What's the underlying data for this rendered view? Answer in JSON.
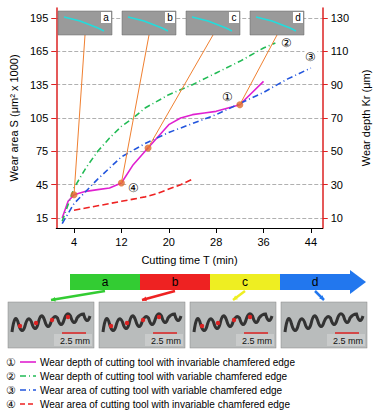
{
  "chart_data": {
    "type": "line",
    "x_label": "Cutting time T (min)",
    "y_label": "Wear area S (μm² x 1000)",
    "y2_label": "Wear depth Kr (μm)",
    "xlim": [
      1,
      46
    ],
    "xticks": [
      4,
      12,
      20,
      28,
      36,
      44
    ],
    "ylim": [
      6,
      204
    ],
    "yticks": [
      15,
      45,
      75,
      105,
      135,
      165,
      195
    ],
    "y2lim": [
      4,
      136
    ],
    "y2ticks": [
      10,
      30,
      50,
      70,
      90,
      110,
      130
    ],
    "grid": true,
    "series": [
      {
        "tag": "①",
        "name": "Wear depth of cutting tool with invariable chamfered edge",
        "color": "#e020d0",
        "line_style": "solid",
        "axis": "y2",
        "x": [
          2,
          3,
          4,
          6,
          8,
          10,
          12,
          14,
          16,
          18,
          20,
          22,
          24,
          26,
          28,
          30,
          32,
          34,
          36
        ],
        "values": [
          10,
          20,
          24,
          26,
          27,
          28,
          31,
          42,
          50,
          58,
          66,
          70,
          72,
          73,
          74,
          76,
          78,
          85,
          92
        ]
      },
      {
        "tag": "②",
        "name": "Wear depth of cutting tool with variable chamfered edge",
        "color": "#22bb55",
        "line_style": "dashdot",
        "axis": "y2",
        "x": [
          2,
          4,
          6,
          8,
          10,
          12,
          14,
          16,
          18,
          20,
          24,
          28,
          32,
          36,
          38
        ],
        "values": [
          8,
          28,
          40,
          50,
          58,
          65,
          70,
          76,
          80,
          84,
          90,
          97,
          104,
          112,
          115
        ]
      },
      {
        "tag": "③",
        "name": "Wear area of cutting tool with variable chamfered edge",
        "color": "#2255dd",
        "line_style": "dashdot",
        "axis": "y",
        "x": [
          2,
          4,
          8,
          12,
          16,
          20,
          24,
          28,
          32,
          36,
          40,
          44
        ],
        "values": [
          10,
          28,
          50,
          70,
          82,
          92,
          100,
          108,
          118,
          128,
          140,
          150
        ]
      },
      {
        "tag": "④",
        "name": "Wear area of cutting tool with invariable chamfered edge",
        "color": "#ee2222",
        "line_style": "dashed",
        "axis": "y",
        "x": [
          4,
          6,
          8,
          10,
          12,
          14,
          16,
          18,
          20,
          22,
          24
        ],
        "values": [
          22,
          24,
          26,
          28,
          30,
          32,
          34,
          37,
          41,
          45,
          50
        ]
      }
    ],
    "insets": [
      {
        "label": "a",
        "x": 4,
        "y": 24,
        "axis": "y2"
      },
      {
        "label": "b",
        "x": 12,
        "y": 31,
        "axis": "y2"
      },
      {
        "label": "c",
        "x": 16.5,
        "y": 52,
        "axis": "y2"
      },
      {
        "label": "d",
        "x": 32,
        "y": 78,
        "axis": "y2"
      }
    ],
    "stages": [
      {
        "label": "a",
        "color": "#33cc33",
        "scale_bar": "2.5 mm"
      },
      {
        "label": "b",
        "color": "#ee2222",
        "scale_bar": "2.5 mm"
      },
      {
        "label": "c",
        "color": "#eeee22",
        "scale_bar": "2.5 mm"
      },
      {
        "label": "d",
        "color": "#2277ee",
        "scale_bar": "2.5 mm"
      }
    ]
  }
}
